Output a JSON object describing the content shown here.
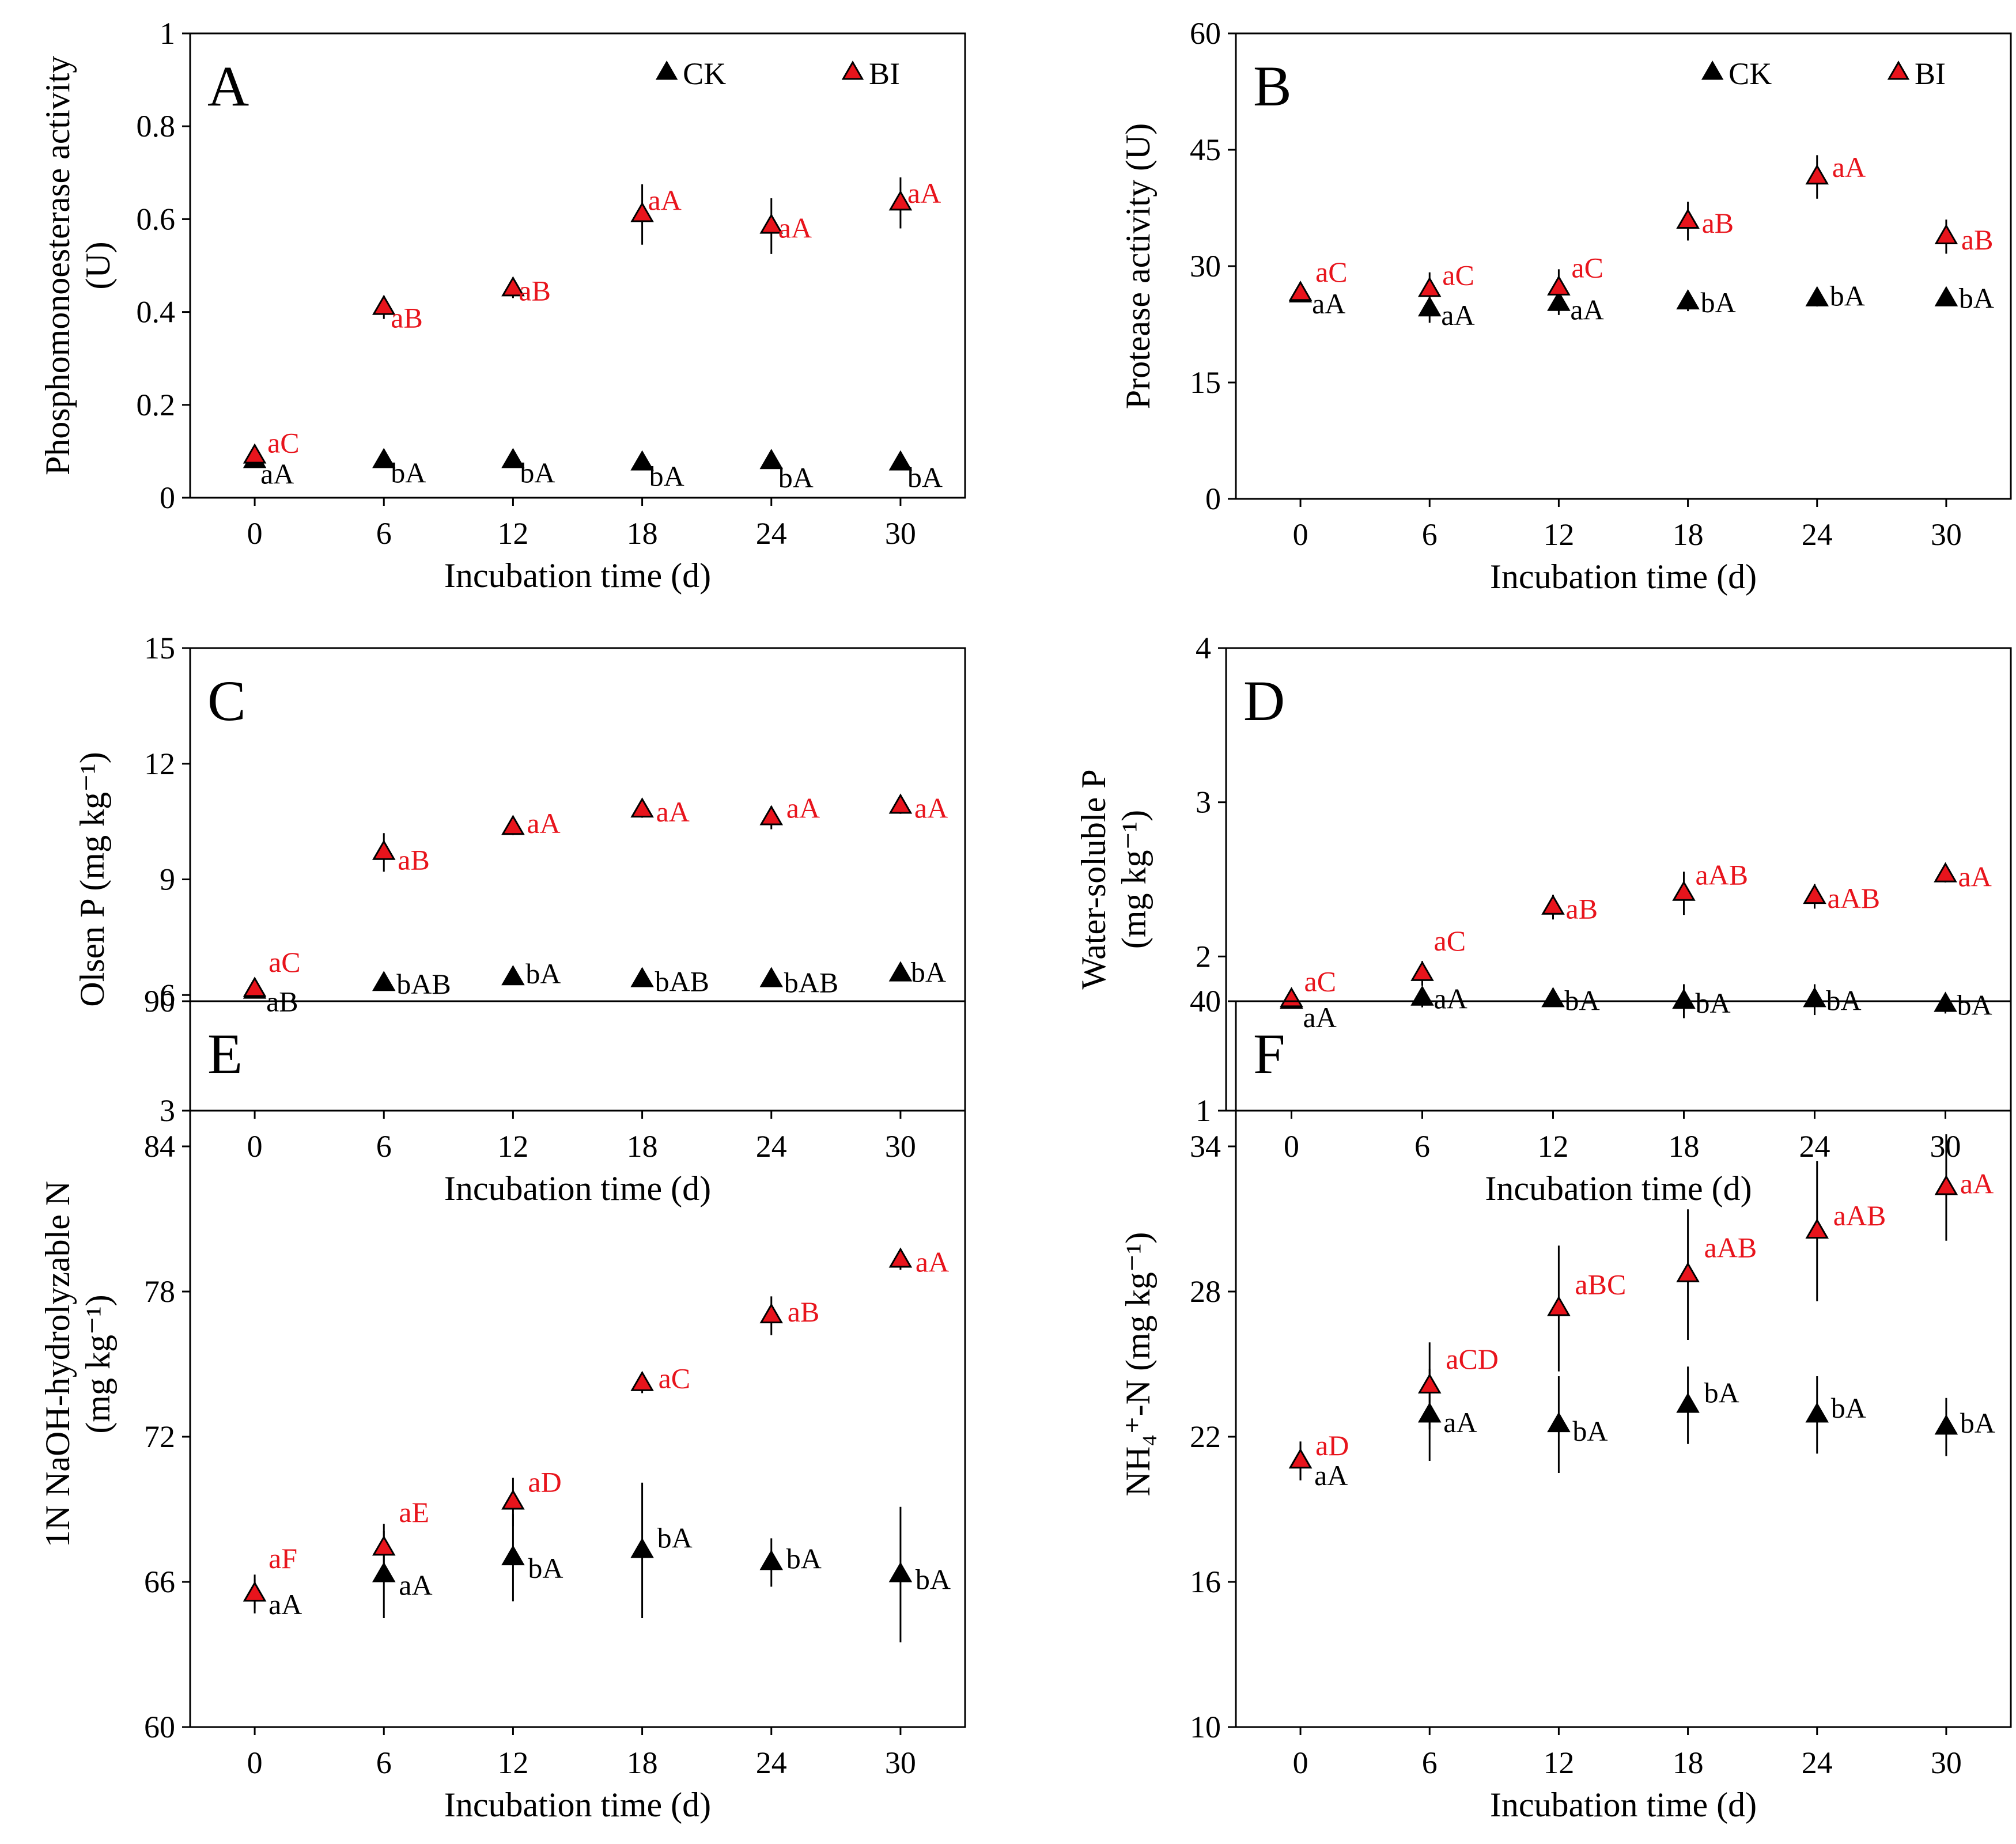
{
  "figure": {
    "legend": {
      "ck": "CK",
      "bi": "BI"
    },
    "colors": {
      "ck": "#000000",
      "bi": "#e8141c",
      "ck_label": "#000000",
      "bi_label": "#e8141c"
    }
  },
  "chart_data": [
    {
      "panel": "A",
      "type": "scatter",
      "title": "A",
      "xlabel": "Incubation time (d)",
      "ylabel": [
        "Phosphomonoesterase activity",
        "(U)"
      ],
      "x": [
        0,
        6,
        12,
        18,
        24,
        30
      ],
      "xlim": [
        -3,
        33
      ],
      "ylim": [
        0,
        1
      ],
      "yticks": [
        0,
        0.2,
        0.4,
        0.6,
        0.8,
        1
      ],
      "ytick_labels": [
        "0",
        "0.2",
        "0.4",
        "0.6",
        "0.8",
        "1"
      ],
      "show_legend": true,
      "series": [
        {
          "name": "CK",
          "values": [
            0.08,
            0.08,
            0.08,
            0.075,
            0.078,
            0.075
          ],
          "errors": [
            0.005,
            0.005,
            0.005,
            0.005,
            0.005,
            0.005
          ],
          "labels": [
            "aA",
            "bA",
            "bA",
            "bA",
            "bA",
            "bA"
          ]
        },
        {
          "name": "BI",
          "values": [
            0.09,
            0.41,
            0.45,
            0.61,
            0.585,
            0.635
          ],
          "errors": [
            0.01,
            0.025,
            0.02,
            0.065,
            0.06,
            0.055
          ],
          "labels": [
            "aC",
            "aB",
            "aB",
            "aA",
            "aA",
            "aA"
          ]
        }
      ]
    },
    {
      "panel": "B",
      "type": "scatter",
      "title": "B",
      "xlabel": "Incubation time (d)",
      "ylabel": [
        "Protease activity (U)"
      ],
      "x": [
        0,
        6,
        12,
        18,
        24,
        30
      ],
      "xlim": [
        -3,
        33
      ],
      "ylim": [
        0,
        60
      ],
      "yticks": [
        0,
        15,
        30,
        45,
        60
      ],
      "ytick_labels": [
        "0",
        "15",
        "30",
        "45",
        "60"
      ],
      "show_legend": true,
      "series": [
        {
          "name": "CK",
          "values": [
            26.3,
            24.5,
            25.2,
            25.4,
            25.8,
            25.8
          ],
          "errors": [
            0.5,
            1.8,
            1.5,
            1.2,
            1.0,
            0.8
          ],
          "labels": [
            "aA",
            "aA",
            "aA",
            "bA",
            "bA",
            "bA"
          ]
        },
        {
          "name": "BI",
          "values": [
            26.5,
            27.0,
            27.2,
            35.8,
            41.5,
            33.8
          ],
          "errors": [
            0.8,
            2.2,
            2.4,
            2.5,
            2.8,
            2.2
          ],
          "labels": [
            "aC",
            "aC",
            "aC",
            "aB",
            "aA",
            "aB"
          ]
        }
      ]
    },
    {
      "panel": "C",
      "type": "scatter",
      "title": "C",
      "xlabel": "Incubation time (d)",
      "ylabel": [
        "Olsen P (mg kg⁻¹)"
      ],
      "x": [
        0,
        6,
        12,
        18,
        24,
        30
      ],
      "xlim": [
        -3,
        33
      ],
      "ylim": [
        3,
        15
      ],
      "yticks": [
        3,
        6,
        9,
        12,
        15
      ],
      "ytick_labels": [
        "3",
        "6",
        "9",
        "12",
        "15"
      ],
      "show_legend": false,
      "series": [
        {
          "name": "CK",
          "values": [
            6.1,
            6.3,
            6.45,
            6.4,
            6.4,
            6.55
          ],
          "errors": [
            0.1,
            0.15,
            0.15,
            0.1,
            0.1,
            0.1
          ],
          "labels": [
            "aB",
            "bAB",
            "bA",
            "bAB",
            "bAB",
            "bA"
          ]
        },
        {
          "name": "BI",
          "values": [
            6.15,
            9.7,
            10.35,
            10.8,
            10.6,
            10.9
          ],
          "errors": [
            0.1,
            0.5,
            0.2,
            0.2,
            0.3,
            0.2
          ],
          "labels": [
            "aC",
            "aB",
            "aA",
            "aA",
            "aA",
            "aA"
          ]
        }
      ]
    },
    {
      "panel": "D",
      "type": "scatter",
      "title": "D",
      "xlabel": "Incubation time (d)",
      "ylabel": [
        "Water-soluble P",
        "(mg kg⁻¹)"
      ],
      "x": [
        0,
        6,
        12,
        18,
        24,
        30
      ],
      "xlim": [
        -3,
        33
      ],
      "ylim": [
        1,
        4
      ],
      "yticks": [
        1,
        2,
        3,
        4
      ],
      "ytick_labels": [
        "1",
        "2",
        "3",
        "4"
      ],
      "show_legend": false,
      "series": [
        {
          "name": "CK",
          "values": [
            1.71,
            1.73,
            1.72,
            1.71,
            1.72,
            1.69
          ],
          "errors": [
            0.03,
            0.06,
            0.04,
            0.11,
            0.1,
            0.06
          ],
          "labels": [
            "aA",
            "aA",
            "bA",
            "bA",
            "bA",
            "bA"
          ]
        },
        {
          "name": "BI",
          "values": [
            1.72,
            1.89,
            2.32,
            2.41,
            2.39,
            2.53
          ],
          "errors": [
            0.04,
            0.08,
            0.08,
            0.14,
            0.08,
            0.05
          ],
          "labels": [
            "aC",
            "aC",
            "aB",
            "aAB",
            "aAB",
            "aA"
          ]
        }
      ]
    },
    {
      "panel": "E",
      "type": "scatter",
      "title": "E",
      "xlabel": "Incubation time (d)",
      "ylabel": [
        "1N NaOH-hydrolyzable N",
        "(mg kg⁻¹)"
      ],
      "x": [
        0,
        6,
        12,
        18,
        24,
        30
      ],
      "xlim": [
        -3,
        33
      ],
      "ylim": [
        60,
        90
      ],
      "yticks": [
        60,
        66,
        72,
        78,
        84,
        90
      ],
      "ytick_labels": [
        "60",
        "66",
        "72",
        "78",
        "84",
        "90"
      ],
      "show_legend": false,
      "series": [
        {
          "name": "CK",
          "values": [
            65.5,
            66.3,
            67.0,
            67.3,
            66.8,
            66.3
          ],
          "errors": [
            0.6,
            1.8,
            1.8,
            2.8,
            1.0,
            2.8
          ],
          "labels": [
            "aA",
            "aA",
            "bA",
            "bA",
            "bA",
            "bA"
          ]
        },
        {
          "name": "BI",
          "values": [
            65.5,
            67.4,
            69.3,
            74.2,
            77.0,
            79.3
          ],
          "errors": [
            0.8,
            1.0,
            1.0,
            0.4,
            0.8,
            0.4
          ],
          "labels": [
            "aF",
            "aE",
            "aD",
            "aC",
            "aB",
            "aA"
          ]
        }
      ]
    },
    {
      "panel": "F",
      "type": "scatter",
      "title": "F",
      "xlabel": "Incubation time (d)",
      "ylabel": [
        "NH₄⁺-N (mg kg⁻¹)"
      ],
      "x": [
        0,
        6,
        12,
        18,
        24,
        30
      ],
      "xlim": [
        -3,
        33
      ],
      "ylim": [
        10,
        40
      ],
      "yticks": [
        10,
        16,
        22,
        28,
        34,
        40
      ],
      "ytick_labels": [
        "10",
        "16",
        "22",
        "28",
        "34",
        "40"
      ],
      "show_legend": false,
      "series": [
        {
          "name": "CK",
          "values": [
            21.0,
            22.9,
            22.5,
            23.3,
            22.9,
            22.4
          ],
          "errors": [
            0.8,
            1.9,
            2.0,
            1.6,
            1.6,
            1.2
          ],
          "labels": [
            "aA",
            "aA",
            "bA",
            "bA",
            "bA",
            "bA"
          ]
        },
        {
          "name": "BI",
          "values": [
            21.0,
            24.1,
            27.3,
            28.7,
            30.5,
            32.3
          ],
          "errors": [
            0.8,
            1.8,
            2.6,
            2.7,
            2.9,
            2.2
          ],
          "labels": [
            "aD",
            "aCD",
            "aBC",
            "aAB",
            "aAB",
            "aA"
          ]
        }
      ]
    }
  ]
}
